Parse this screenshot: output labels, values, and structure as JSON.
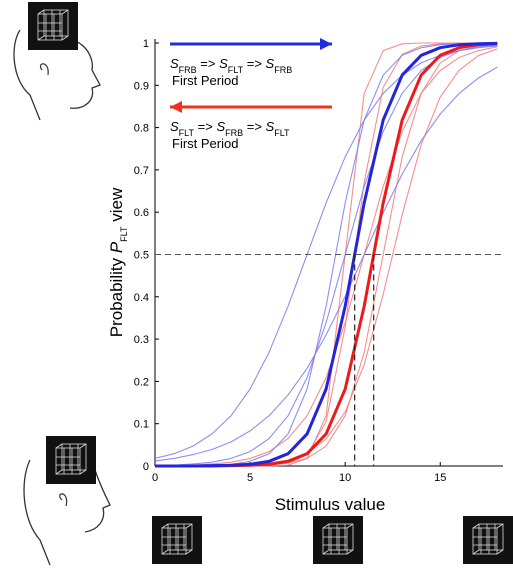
{
  "chart_data": {
    "type": "line",
    "x_label": "Stimulus value",
    "y_label": [
      {
        "text": "Probability "
      },
      {
        "text": "P",
        "style": "italic"
      },
      {
        "text": "FLT",
        "style": "sub"
      },
      {
        "text": " view"
      }
    ],
    "xlim": [
      0,
      18.3
    ],
    "ylim": [
      0,
      1
    ],
    "xticks": [
      0,
      5,
      10,
      15
    ],
    "yticks": [
      0,
      0.1,
      0.2,
      0.3,
      0.4,
      0.5,
      0.6,
      0.7,
      0.8,
      0.9,
      1
    ],
    "hline": 0.5,
    "vlines": [
      10.5,
      11.5
    ],
    "legend": [
      {
        "color": "#1f2fe0",
        "direction": "right",
        "label": [
          {
            "text": "S",
            "style": "italic"
          },
          {
            "text": "FRB",
            "style": "sub"
          },
          {
            "text": " => "
          },
          {
            "text": "S",
            "style": "italic"
          },
          {
            "text": "FLT",
            "style": "sub"
          },
          {
            "text": " => "
          },
          {
            "text": "S",
            "style": "italic"
          },
          {
            "text": "FRB",
            "style": "sub"
          }
        ],
        "sublabel": "First Period"
      },
      {
        "color": "#f0311c",
        "direction": "left",
        "label": [
          {
            "text": "S",
            "style": "italic"
          },
          {
            "text": "FLT",
            "style": "sub"
          },
          {
            "text": " => "
          },
          {
            "text": "S",
            "style": "italic"
          },
          {
            "text": "FRB",
            "style": "sub"
          },
          {
            "text": " => "
          },
          {
            "text": "S",
            "style": "italic"
          },
          {
            "text": "FLT",
            "style": "sub"
          }
        ],
        "sublabel": "First Period"
      }
    ],
    "x": [
      0,
      1,
      2,
      3,
      4,
      5,
      6,
      7,
      8,
      9,
      10,
      11,
      12,
      13,
      14,
      15,
      16,
      17,
      18
    ],
    "series": [
      {
        "color": "#2424d8",
        "values": [
          0,
          0,
          0,
          0.001,
          0.002,
          0.004,
          0.011,
          0.029,
          0.076,
          0.182,
          0.378,
          0.622,
          0.818,
          0.924,
          0.971,
          0.989,
          0.996,
          0.998,
          0.999
        ]
      },
      {
        "color": "#ee1a1a",
        "values": [
          0,
          0,
          0,
          0,
          0.001,
          0.002,
          0.004,
          0.011,
          0.029,
          0.076,
          0.182,
          0.378,
          0.622,
          0.818,
          0.924,
          0.971,
          0.989,
          0.996,
          0.998
        ]
      },
      {
        "color": "#7a7af0",
        "values": [
          0.018,
          0.029,
          0.047,
          0.076,
          0.119,
          0.182,
          0.269,
          0.378,
          0.5,
          0.622,
          0.731,
          0.818,
          0.881,
          0.924,
          0.953,
          0.971,
          0.982,
          0.989,
          0.993
        ]
      },
      {
        "color": "#7a7af0",
        "values": [
          0.001,
          0.002,
          0.005,
          0.009,
          0.018,
          0.034,
          0.065,
          0.119,
          0.209,
          0.339,
          0.5,
          0.661,
          0.791,
          0.881,
          0.935,
          0.966,
          0.982,
          0.991,
          0.995
        ]
      },
      {
        "color": "#7a7af0",
        "values": [
          0.012,
          0.018,
          0.027,
          0.039,
          0.057,
          0.083,
          0.119,
          0.168,
          0.231,
          0.31,
          0.401,
          0.5,
          0.599,
          0.69,
          0.769,
          0.832,
          0.881,
          0.917,
          0.943
        ]
      },
      {
        "color": "#7a7af0",
        "values": [
          0,
          0,
          0,
          0.002,
          0.004,
          0.011,
          0.029,
          0.076,
          0.182,
          0.378,
          0.622,
          0.818,
          0.924,
          0.971,
          0.989,
          0.996,
          0.998,
          0.999,
          1
        ]
      },
      {
        "color": "#f47a7a",
        "values": [
          0,
          0,
          0,
          0,
          0,
          0,
          0,
          0.002,
          0.018,
          0.119,
          0.5,
          0.881,
          0.982,
          0.998,
          1,
          1,
          1,
          1,
          1
        ]
      },
      {
        "color": "#f47a7a",
        "values": [
          0,
          0,
          0,
          0,
          0,
          0,
          0.002,
          0.007,
          0.018,
          0.047,
          0.119,
          0.269,
          0.5,
          0.731,
          0.881,
          0.953,
          0.982,
          0.993,
          0.998
        ]
      },
      {
        "color": "#f47a7a",
        "values": [
          0.001,
          0.001,
          0.002,
          0.005,
          0.009,
          0.018,
          0.034,
          0.065,
          0.119,
          0.209,
          0.339,
          0.5,
          0.661,
          0.791,
          0.881,
          0.935,
          0.966,
          0.982,
          0.991
        ]
      },
      {
        "color": "#f47a7a",
        "values": [
          0,
          0,
          0,
          0,
          0,
          0,
          0.002,
          0.007,
          0.027,
          0.105,
          0.329,
          0.671,
          0.895,
          0.973,
          0.993,
          0.998,
          1,
          1,
          1
        ]
      },
      {
        "color": "#f47a7a",
        "values": [
          0,
          0,
          0,
          0,
          0.001,
          0.003,
          0.007,
          0.014,
          0.03,
          0.064,
          0.128,
          0.24,
          0.406,
          0.594,
          0.76,
          0.872,
          0.936,
          0.97,
          0.986
        ]
      }
    ]
  }
}
